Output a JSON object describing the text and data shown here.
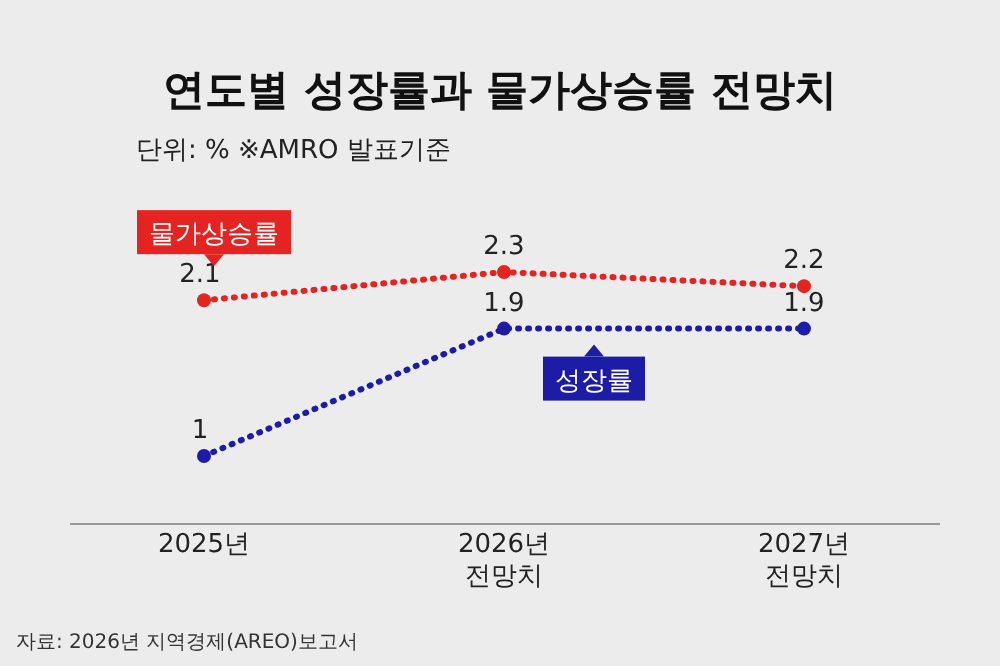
{
  "chart_data": {
    "type": "line",
    "title": "연도별 성장률과 물가상승률 전망치",
    "subtitle": "단위: %   ※AMRO 발표기준",
    "categories": [
      "2025년",
      "2026년 전망치",
      "2027년 전망치"
    ],
    "series": [
      {
        "name": "물가상승률",
        "color": "#e52421",
        "values": [
          2.1,
          2.3,
          2.2
        ]
      },
      {
        "name": "성장률",
        "color": "#1c1ca6",
        "values": [
          1,
          1.9,
          1.9
        ]
      }
    ],
    "tick_labels": "x",
    "data_labels": true,
    "grid": false,
    "marker": "circle",
    "line_style": "dotted",
    "annotations": [
      "자료: 2026년 지역경제(AREO)보고서"
    ]
  }
}
